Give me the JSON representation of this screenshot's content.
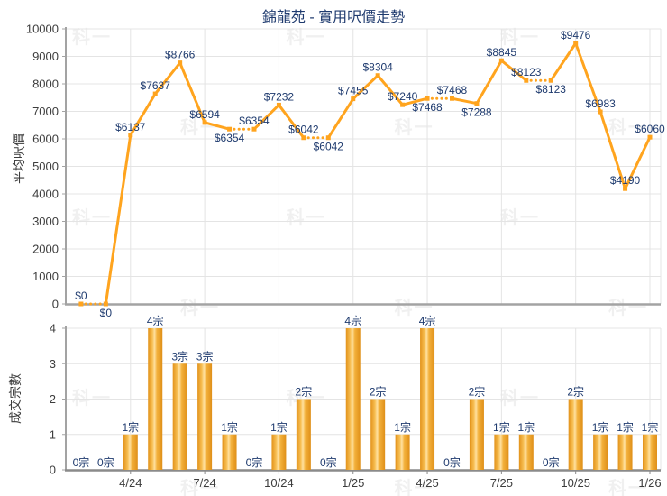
{
  "title": "錦龍苑 - 實用呎價走勢",
  "watermark_text": "科一",
  "colors": {
    "line_orange": "#FFA41E",
    "bar_gradient_edge": "#E2921A",
    "bar_gradient_center": "#FFE1A0",
    "label_navy": "#1E3A6E",
    "tick_text": "#3C3C3C",
    "gridline": "#E4E4E4",
    "axis_gray": "#A3A3A3",
    "bar_axis_gray": "#8A8A8A"
  },
  "chart_data": [
    {
      "type": "line",
      "title": "錦龍苑 - 實用呎價走勢",
      "ylabel": "平均呎價",
      "ylim": [
        0,
        10000
      ],
      "grid": true,
      "legend": "none",
      "ytick_labels": [
        "0",
        "1000",
        "2000",
        "3000",
        "4000",
        "5000",
        "6000",
        "7000",
        "8000",
        "9000",
        "10000"
      ],
      "xtick_labels": [
        "4/24",
        "7/24",
        "10/24",
        "1/25",
        "4/25",
        "7/25",
        "10/25",
        "1/26"
      ],
      "xtick_point_index": [
        3,
        6,
        9,
        12,
        15,
        18,
        21,
        24
      ],
      "n_points": 24,
      "values": [
        0,
        0,
        6137,
        7637,
        8766,
        6594,
        6354,
        6354,
        7232,
        6042,
        6042,
        7455,
        8304,
        7240,
        7468,
        7468,
        7288,
        8845,
        8123,
        8123,
        9476,
        6983,
        4190,
        6060
      ],
      "point_labels": [
        "$0",
        "$0",
        "$6137",
        "$7637",
        "$8766",
        "$6594",
        "$6354",
        "$6354",
        "$7232",
        "$6042",
        "$6042",
        "$7455",
        "$8304",
        "$7240",
        "$7468",
        "$7468",
        "$7288",
        "$8845",
        "$8123",
        "$8123",
        "$9476",
        "$6983",
        "$4190",
        "$6060"
      ],
      "label_positions": [
        "above",
        "below",
        "above",
        "above",
        "above",
        "above",
        "below",
        "above",
        "above",
        "above",
        "below",
        "above",
        "above",
        "above",
        "below",
        "above",
        "below",
        "above",
        "above",
        "below",
        "above",
        "above",
        "above",
        "above"
      ],
      "dotted_segments": [
        [
          1,
          2
        ],
        [
          7,
          8
        ],
        [
          10,
          11
        ],
        [
          15,
          16
        ],
        [
          19,
          20
        ]
      ]
    },
    {
      "type": "bar",
      "ylabel": "成交宗數",
      "ylim": [
        0,
        4
      ],
      "grid": true,
      "legend": "none",
      "ytick_labels": [
        "0",
        "1",
        "2",
        "3",
        "4"
      ],
      "xtick_labels": [
        "4/24",
        "7/24",
        "10/24",
        "1/25",
        "4/25",
        "7/25",
        "10/25",
        "1/26"
      ],
      "xtick_point_index": [
        3,
        6,
        9,
        12,
        15,
        18,
        21,
        24
      ],
      "values": [
        0,
        0,
        1,
        4,
        3,
        3,
        1,
        0,
        1,
        2,
        0,
        4,
        2,
        1,
        4,
        0,
        2,
        1,
        1,
        0,
        2,
        1,
        1,
        1
      ],
      "bar_labels": [
        "0宗",
        "0宗",
        "1宗",
        "4宗",
        "3宗",
        "3宗",
        "1宗",
        "0宗",
        "1宗",
        "2宗",
        "0宗",
        "4宗",
        "2宗",
        "1宗",
        "4宗",
        "0宗",
        "2宗",
        "1宗",
        "1宗",
        "0宗",
        "2宗",
        "1宗",
        "1宗",
        "1宗"
      ]
    }
  ]
}
